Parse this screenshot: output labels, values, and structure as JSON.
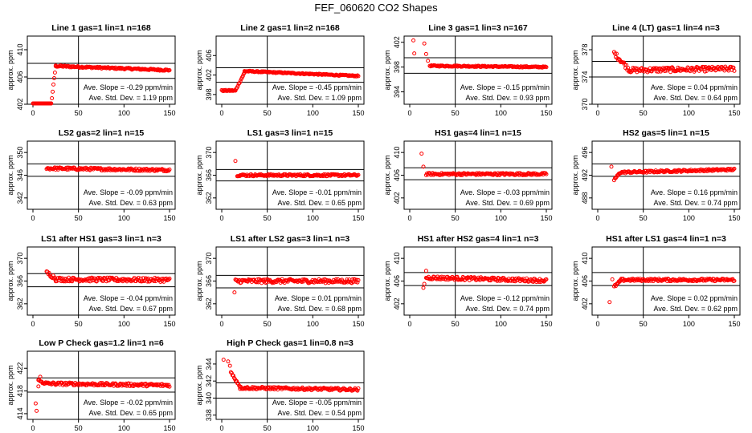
{
  "figure": {
    "title": "FEF_060620  CO2 Shapes",
    "point_color": "#ff0000",
    "axis_color": "#000000"
  },
  "chart_data": [
    {
      "type": "scatter",
      "title": "Line 1 gas=1 lin=1 n=168",
      "ylabel": "approx. ppm",
      "xlim": [
        0,
        150
      ],
      "ylim": [
        402,
        412
      ],
      "xticks": [
        "0",
        "50",
        "100",
        "150"
      ],
      "yticks": [
        "402",
        "406",
        "410"
      ],
      "ytick_values": [
        402,
        406,
        410
      ],
      "hlines": [
        408,
        405.8
      ],
      "vline": 50,
      "slope_label": "Ave. Slope = -0.29  ppm/min",
      "std_label": "Ave. Std. Dev. =  1.19  ppm",
      "segments": [
        {
          "x": [
            0,
            20
          ],
          "y": [
            401.8,
            401.8
          ]
        },
        {
          "x": [
            20,
            25
          ],
          "y": [
            402,
            407.6
          ]
        },
        {
          "x": [
            25,
            150
          ],
          "y": [
            407.6,
            407.0
          ]
        }
      ],
      "noise": 0.12
    },
    {
      "type": "scatter",
      "title": "Line 2 gas=1 lin=2 n=168",
      "ylabel": "approx. ppm",
      "xlim": [
        0,
        150
      ],
      "ylim": [
        396,
        410
      ],
      "xticks": [
        "0",
        "50",
        "100",
        "150"
      ],
      "yticks": [
        "398",
        "402",
        "406"
      ],
      "ytick_values": [
        398,
        402,
        406
      ],
      "hlines": [
        403.5,
        400.5
      ],
      "vline": 50,
      "slope_label": "Ave. Slope = -0.45  ppm/min",
      "std_label": "Ave. Std. Dev. =  1.09  ppm",
      "segments": [
        {
          "x": [
            0,
            15
          ],
          "y": [
            398.8,
            398.8
          ]
        },
        {
          "x": [
            15,
            25
          ],
          "y": [
            398.8,
            402.5
          ]
        },
        {
          "x": [
            25,
            150
          ],
          "y": [
            402.8,
            401.8
          ]
        }
      ],
      "noise": 0.12
    },
    {
      "type": "scatter",
      "title": "Line 3 gas=1 lin=3 n=167",
      "ylabel": "approx. ppm",
      "xlim": [
        0,
        150
      ],
      "ylim": [
        392,
        403
      ],
      "xticks": [
        "0",
        "50",
        "100",
        "150"
      ],
      "yticks": [
        "394",
        "398",
        "402"
      ],
      "ytick_values": [
        394,
        398,
        402
      ],
      "hlines": [
        399.5,
        397
      ],
      "vline": 50,
      "slope_label": "Ave. Slope = -0.15  ppm/min",
      "std_label": "Ave. Std. Dev. =  0.93  ppm",
      "segments": [
        {
          "x": [
            22,
            150
          ],
          "y": [
            398.2,
            398.0
          ]
        }
      ],
      "extra_points": [
        {
          "x": 4,
          "y": 402.3
        },
        {
          "x": 5,
          "y": 400.2
        },
        {
          "x": 16,
          "y": 401.8
        },
        {
          "x": 18,
          "y": 400.1
        },
        {
          "x": 20,
          "y": 399.0
        }
      ],
      "noise": 0.1
    },
    {
      "type": "scatter",
      "title": "Line 4 (LT) gas=1 lin=4 n=3",
      "ylabel": "approx. ppm",
      "xlim": [
        0,
        150
      ],
      "ylim": [
        370,
        380
      ],
      "xticks": [
        "0",
        "50",
        "100",
        "150"
      ],
      "yticks": [
        "370",
        "374",
        "378"
      ],
      "ytick_values": [
        370,
        374,
        378
      ],
      "hlines": [
        376.3,
        374.0
      ],
      "vline": 50,
      "slope_label": "Ave. Slope =  0.04  ppm/min",
      "std_label": "Ave. Std. Dev. =  0.64  ppm",
      "segments": [
        {
          "x": [
            18,
            35
          ],
          "y": [
            377.5,
            375.0
          ]
        },
        {
          "x": [
            35,
            150
          ],
          "y": [
            375.0,
            375.2
          ]
        }
      ],
      "noise": 0.35
    },
    {
      "type": "scatter",
      "title": "LS2 gas=2 lin=1 n=15",
      "ylabel": "approx. ppm",
      "xlim": [
        0,
        150
      ],
      "ylim": [
        340,
        352
      ],
      "xticks": [
        "0",
        "50",
        "100",
        "150"
      ],
      "yticks": [
        "342",
        "346",
        "350"
      ],
      "ytick_values": [
        342,
        346,
        350
      ],
      "hlines": [
        348,
        345.8
      ],
      "vline": 50,
      "slope_label": "Ave. Slope = -0.09  ppm/min",
      "std_label": "Ave. Std. Dev. =  0.63  ppm",
      "segments": [
        {
          "x": [
            15,
            150
          ],
          "y": [
            347.2,
            346.9
          ]
        }
      ],
      "noise": 0.22
    },
    {
      "type": "scatter",
      "title": "LS1 gas=3 lin=1 n=15",
      "ylabel": "approx. ppm",
      "xlim": [
        0,
        150
      ],
      "ylim": [
        360,
        372
      ],
      "xticks": [
        "0",
        "50",
        "100",
        "150"
      ],
      "yticks": [
        "362",
        "366",
        "370"
      ],
      "ytick_values": [
        362,
        366,
        370
      ],
      "hlines": [
        367,
        365
      ],
      "vline": 50,
      "slope_label": "Ave. Slope = -0.01  ppm/min",
      "std_label": "Ave. Std. Dev. =  0.65  ppm",
      "segments": [
        {
          "x": [
            17,
            150
          ],
          "y": [
            366.0,
            366.0
          ]
        }
      ],
      "extra_points": [
        {
          "x": 15,
          "y": 368.5
        }
      ],
      "noise": 0.18
    },
    {
      "type": "scatter",
      "title": "HS1 gas=4 lin=1 n=15",
      "ylabel": "approx. ppm",
      "xlim": [
        0,
        150
      ],
      "ylim": [
        400,
        412
      ],
      "xticks": [
        "0",
        "50",
        "100",
        "150"
      ],
      "yticks": [
        "402",
        "406",
        "410"
      ],
      "ytick_values": [
        402,
        406,
        410
      ],
      "hlines": [
        407.3,
        405.2
      ],
      "vline": 50,
      "slope_label": "Ave. Slope = -0.03  ppm/min",
      "std_label": "Ave. Std. Dev. =  0.69  ppm",
      "segments": [
        {
          "x": [
            18,
            150
          ],
          "y": [
            406.2,
            406.2
          ]
        }
      ],
      "extra_points": [
        {
          "x": 13,
          "y": 409.8
        },
        {
          "x": 15,
          "y": 407.5
        }
      ],
      "noise": 0.2
    },
    {
      "type": "scatter",
      "title": "HS2 gas=5 lin=1 n=15",
      "ylabel": "approx. ppm",
      "xlim": [
        0,
        150
      ],
      "ylim": [
        486,
        498
      ],
      "xticks": [
        "0",
        "50",
        "100",
        "150"
      ],
      "yticks": [
        "488",
        "492",
        "496"
      ],
      "ytick_values": [
        488,
        492,
        496
      ],
      "hlines": [
        494,
        491.8
      ],
      "vline": 50,
      "slope_label": "Ave. Slope =  0.16  ppm/min",
      "std_label": "Ave. Std. Dev. =  0.74  ppm",
      "segments": [
        {
          "x": [
            18,
            25
          ],
          "y": [
            491.2,
            492.5
          ]
        },
        {
          "x": [
            25,
            150
          ],
          "y": [
            492.5,
            493.0
          ]
        }
      ],
      "extra_points": [
        {
          "x": 15,
          "y": 493.5
        }
      ],
      "noise": 0.18
    },
    {
      "type": "scatter",
      "title": "LS1 after HS1 gas=3 lin=1 n=3",
      "ylabel": "approx. ppm",
      "xlim": [
        0,
        150
      ],
      "ylim": [
        360,
        372
      ],
      "xticks": [
        "0",
        "50",
        "100",
        "150"
      ],
      "yticks": [
        "362",
        "366",
        "370"
      ],
      "ytick_values": [
        362,
        366,
        370
      ],
      "hlines": [
        367.3,
        365.0
      ],
      "vline": 50,
      "slope_label": "Ave. Slope = -0.04  ppm/min",
      "std_label": "Ave. Std. Dev. =  0.67  ppm",
      "segments": [
        {
          "x": [
            15,
            25
          ],
          "y": [
            367.5,
            366.5
          ]
        },
        {
          "x": [
            25,
            150
          ],
          "y": [
            366.3,
            366.2
          ]
        }
      ],
      "noise": 0.35
    },
    {
      "type": "scatter",
      "title": "LS1 after LS2 gas=3 lin=1 n=3",
      "ylabel": "approx. ppm",
      "xlim": [
        0,
        150
      ],
      "ylim": [
        360,
        372
      ],
      "xticks": [
        "0",
        "50",
        "100",
        "150"
      ],
      "yticks": [
        "362",
        "366",
        "370"
      ],
      "ytick_values": [
        362,
        366,
        370
      ],
      "hlines": [
        367.0,
        364.8
      ],
      "vline": 50,
      "slope_label": "Ave. Slope =  0.01  ppm/min",
      "std_label": "Ave. Std. Dev. =  0.68  ppm",
      "segments": [
        {
          "x": [
            15,
            150
          ],
          "y": [
            366.0,
            366.0
          ]
        }
      ],
      "extra_points": [
        {
          "x": 14,
          "y": 364.0
        }
      ],
      "noise": 0.35
    },
    {
      "type": "scatter",
      "title": "HS1 after HS2 gas=4 lin=1 n=3",
      "ylabel": "approx. ppm",
      "xlim": [
        0,
        150
      ],
      "ylim": [
        400,
        412
      ],
      "xticks": [
        "0",
        "50",
        "100",
        "150"
      ],
      "yticks": [
        "402",
        "406",
        "410"
      ],
      "ytick_values": [
        402,
        406,
        410
      ],
      "hlines": [
        407.5,
        405.2
      ],
      "vline": 50,
      "slope_label": "Ave. Slope = -0.12  ppm/min",
      "std_label": "Ave. Std. Dev. =  0.74  ppm",
      "segments": [
        {
          "x": [
            18,
            150
          ],
          "y": [
            406.6,
            406.1
          ]
        }
      ],
      "extra_points": [
        {
          "x": 15,
          "y": 404.8
        },
        {
          "x": 16,
          "y": 405.5
        },
        {
          "x": 18,
          "y": 407.8
        }
      ],
      "noise": 0.3
    },
    {
      "type": "scatter",
      "title": "HS1 after LS1 gas=4 lin=1 n=3",
      "ylabel": "approx. ppm",
      "xlim": [
        0,
        150
      ],
      "ylim": [
        400,
        412
      ],
      "xticks": [
        "0",
        "50",
        "100",
        "150"
      ],
      "yticks": [
        "402",
        "406",
        "410"
      ],
      "ytick_values": [
        402,
        406,
        410
      ],
      "hlines": [
        407.5,
        405.2
      ],
      "vline": 50,
      "slope_label": "Ave. Slope =  0.02  ppm/min",
      "std_label": "Ave. Std. Dev. =  0.62  ppm",
      "segments": [
        {
          "x": [
            18,
            25
          ],
          "y": [
            405.0,
            406.0
          ]
        },
        {
          "x": [
            25,
            150
          ],
          "y": [
            406.2,
            406.2
          ]
        }
      ],
      "extra_points": [
        {
          "x": 13,
          "y": 402.3
        },
        {
          "x": 16,
          "y": 406.3
        }
      ],
      "noise": 0.22
    },
    {
      "type": "scatter",
      "title": "Low P Check gas=1.2 lin=1 n=6",
      "ylabel": "approx. ppm",
      "xlim": [
        0,
        150
      ],
      "ylim": [
        413,
        425
      ],
      "xticks": [
        "0",
        "50",
        "100",
        "150"
      ],
      "yticks": [
        "414",
        "418",
        "422"
      ],
      "ytick_values": [
        414,
        418,
        422
      ],
      "hlines": [
        420.3,
        417.8
      ],
      "vline": 50,
      "slope_label": "Ave. Slope = -0.02  ppm/min",
      "std_label": "Ave. Std. Dev. =  0.65  ppm",
      "segments": [
        {
          "x": [
            6,
            15
          ],
          "y": [
            419.8,
            419.3
          ]
        },
        {
          "x": [
            15,
            150
          ],
          "y": [
            419.3,
            419.0
          ]
        }
      ],
      "extra_points": [
        {
          "x": 3,
          "y": 415.8
        },
        {
          "x": 4,
          "y": 414.5
        },
        {
          "x": 6,
          "y": 418.8
        },
        {
          "x": 8,
          "y": 420.5
        }
      ],
      "noise": 0.25
    },
    {
      "type": "scatter",
      "title": "High P Check gas=1 lin=0.8 n=3",
      "ylabel": "approx. ppm",
      "xlim": [
        0,
        150
      ],
      "ylim": [
        337.5,
        345.5
      ],
      "xticks": [
        "0",
        "50",
        "100",
        "150"
      ],
      "yticks": [
        "338",
        "340",
        "342",
        "344"
      ],
      "ytick_values": [
        338,
        340,
        342,
        344
      ],
      "hlines": [
        341.8,
        340.0
      ],
      "vline": 50,
      "slope_label": "Ave. Slope = -0.05  ppm/min",
      "std_label": "Ave. Std. Dev. =  0.54  ppm",
      "segments": [
        {
          "x": [
            10,
            20
          ],
          "y": [
            343.0,
            341.4
          ]
        },
        {
          "x": [
            20,
            150
          ],
          "y": [
            341.2,
            341.0
          ]
        }
      ],
      "extra_points": [
        {
          "x": 2,
          "y": 344.5
        },
        {
          "x": 7,
          "y": 344.3
        },
        {
          "x": 9,
          "y": 343.8
        }
      ],
      "noise": 0.15
    }
  ]
}
